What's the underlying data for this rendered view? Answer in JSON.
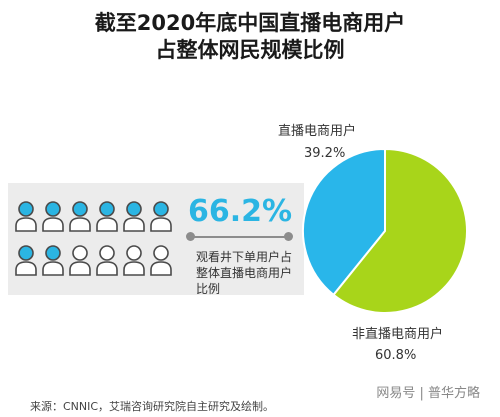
{
  "title": {
    "line1": "截至2020年底中国直播电商用户",
    "line2": "占整体网民规模比例"
  },
  "infographic": {
    "percentage": "66.2%",
    "note": "观看井下单用户占整体直播电商用户比例",
    "people_total": 12,
    "people_highlighted": 8,
    "colors": {
      "highlight": "#2bb5e3",
      "plain": "#ffffff",
      "outline": "#4a4a4a"
    }
  },
  "chart_data": {
    "type": "pie",
    "slices": [
      {
        "label": "直播电商用户",
        "value": 39.2,
        "value_label": "39.2%",
        "color": "#29b6ea"
      },
      {
        "label": "非直播电商用户",
        "value": 60.8,
        "value_label": "60.8%",
        "color": "#a8d51a"
      }
    ]
  },
  "source": "来源：CNNIC，艾瑞咨询研究院自主研究及绘制。",
  "watermark": "网易号 | 普华方略"
}
